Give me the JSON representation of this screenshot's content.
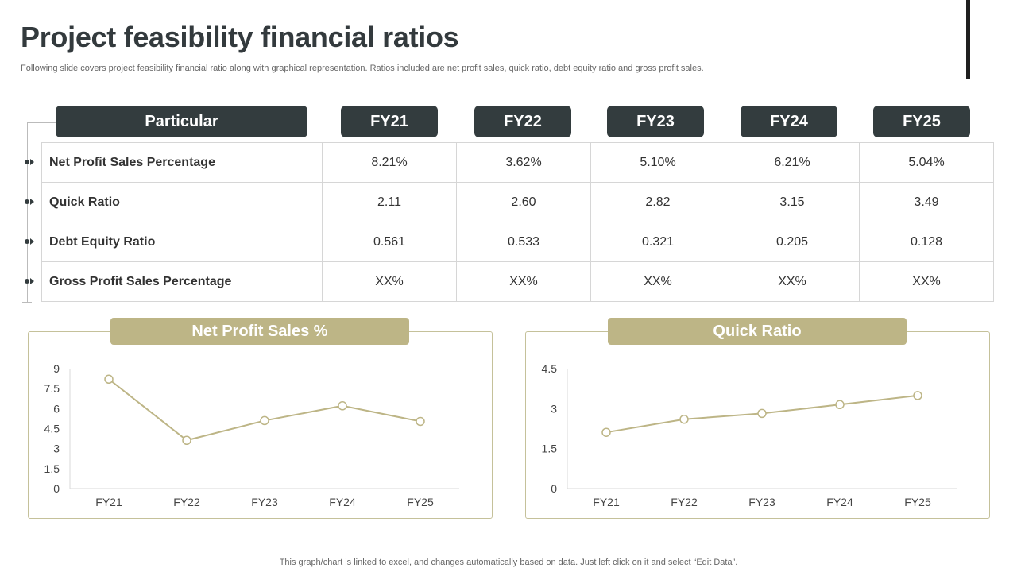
{
  "header": {
    "title": "Project feasibility financial ratios",
    "subtitle": "Following slide covers project feasibility financial ratio along with graphical representation. Ratios included are net profit sales, quick ratio, debt equity ratio and gross profit sales."
  },
  "table": {
    "columns": [
      "Particular",
      "FY21",
      "FY22",
      "FY23",
      "FY24",
      "FY25"
    ],
    "rows": [
      {
        "label": "Net Profit Sales Percentage",
        "values": [
          "8.21%",
          "3.62%",
          "5.10%",
          "6.21%",
          "5.04%"
        ]
      },
      {
        "label": "Quick Ratio",
        "values": [
          "2.11",
          "2.60",
          "2.82",
          "3.15",
          "3.49"
        ]
      },
      {
        "label": "Debt Equity Ratio",
        "values": [
          "0.561",
          "0.533",
          "0.321",
          "0.205",
          "0.128"
        ]
      },
      {
        "label": "Gross Profit Sales Percentage",
        "values": [
          "XX%",
          "XX%",
          "XX%",
          "XX%",
          "XX%"
        ]
      }
    ]
  },
  "chart_data": [
    {
      "type": "line",
      "title": "Net Profit Sales %",
      "categories": [
        "FY21",
        "FY22",
        "FY23",
        "FY24",
        "FY25"
      ],
      "values": [
        8.21,
        3.62,
        5.1,
        6.21,
        5.04
      ],
      "yticks": [
        "0",
        "1.5",
        "3",
        "4.5",
        "6",
        "7.5",
        "9"
      ],
      "ylim": [
        0,
        9
      ],
      "color": "#bdb586"
    },
    {
      "type": "line",
      "title": "Quick Ratio",
      "categories": [
        "FY21",
        "FY22",
        "FY23",
        "FY24",
        "FY25"
      ],
      "values": [
        2.11,
        2.6,
        2.82,
        3.15,
        3.49
      ],
      "yticks": [
        "0",
        "1.5",
        "3",
        "4.5"
      ],
      "ylim": [
        0,
        4.5
      ],
      "color": "#bdb586"
    }
  ],
  "footer": {
    "note": "This graph/chart is linked to excel,  and changes automatically based on data. Just left click on it and select “Edit Data”."
  }
}
